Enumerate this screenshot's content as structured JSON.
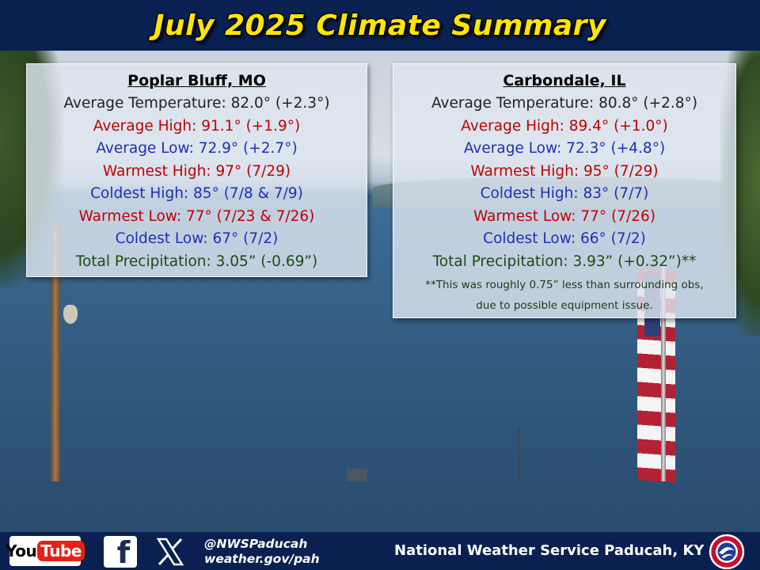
{
  "title": "July 2025 Climate Summary",
  "stations": [
    {
      "name": "Poplar Bluff, MO",
      "avg_temp": "Average Temperature: 82.0° (+2.3°)",
      "avg_high": "Average High: 91.1° (+1.9°)",
      "avg_low": "Average Low: 72.9° (+2.7°)",
      "warmest_high": "Warmest High: 97° (7/29)",
      "coldest_high": "Coldest High: 85° (7/8 & 7/9)",
      "warmest_low": "Warmest Low: 77° (7/23 & 7/26)",
      "coldest_low": "Coldest Low: 67° (7/2)",
      "total_precip": "Total Precipitation: 3.05” (-0.69”)"
    },
    {
      "name": "Carbondale, IL",
      "avg_temp": "Average Temperature: 80.8° (+2.8°)",
      "avg_high": "Average High: 89.4° (+1.0°)",
      "avg_low": "Average Low: 72.3° (+4.8°)",
      "warmest_high": "Warmest High: 95° (7/29)",
      "coldest_high": "Coldest High: 83° (7/7)",
      "warmest_low": "Warmest Low: 77° (7/26)",
      "coldest_low": "Coldest Low: 66° (7/2)",
      "total_precip": "Total Precipitation: 3.93” (+0.32”)**",
      "note_line1": "**This was roughly 0.75” less than surrounding obs,",
      "note_line2": "due to possible equipment issue."
    }
  ],
  "footer": {
    "youtube_you": "You",
    "youtube_tube": "Tube",
    "facebook": "f",
    "social_handle": "@NWSPaducah",
    "website": "weather.gov/pah",
    "agency": "National Weather Service Paducah, KY"
  },
  "colors": {
    "title": "#ffe600",
    "header_bg": "#0a2050",
    "avg": "#222222",
    "high": "#c00000",
    "low": "#1f2fb5",
    "precip": "#1e4a12"
  },
  "icons": [
    "youtube-logo",
    "facebook-icon",
    "x-icon",
    "nws-logo"
  ]
}
